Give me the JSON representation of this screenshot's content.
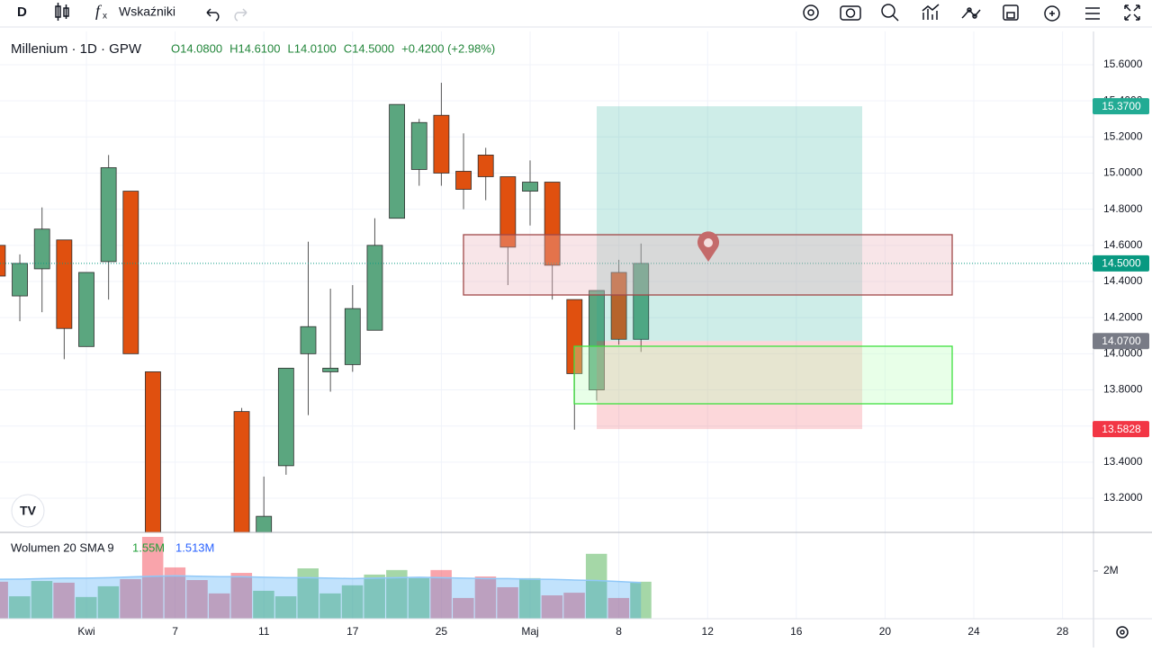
{
  "toolbar": {
    "interval": "D",
    "indicators": "Wskaźniki"
  },
  "chart_data": {
    "type": "candlestick",
    "title": "Millenium · 1D · GPW",
    "legend_items": [
      "O14.0800",
      "H14.6100",
      "L14.0100",
      "C14.5000",
      "+0.4200 (+2.98%)"
    ],
    "categories": [
      null,
      null,
      null,
      null,
      "Kwi",
      null,
      null,
      null,
      "7",
      null,
      null,
      null,
      "11",
      null,
      null,
      null,
      "17",
      null,
      null,
      null,
      "25",
      null,
      null,
      null,
      "Maj",
      null,
      null,
      null,
      "8",
      null,
      null,
      null,
      "12",
      null,
      null,
      null,
      "16",
      null,
      null,
      null,
      "20",
      null,
      null,
      null,
      "24",
      null,
      null,
      null,
      "28",
      null
    ],
    "open": [
      14.6,
      14.32,
      14.47,
      14.63,
      14.04,
      14.51,
      14.9,
      13.9,
      null,
      null,
      null,
      13.68,
      12.9,
      13.38,
      14.0,
      13.9,
      13.94,
      14.13,
      14.75,
      15.02,
      15.32,
      15.01,
      15.1,
      14.98,
      14.9,
      14.95,
      14.3,
      13.8,
      14.45,
      14.08,
      null,
      null,
      null,
      null,
      null,
      null,
      null,
      null,
      null,
      null,
      null,
      null,
      null,
      null,
      null,
      null,
      null,
      null,
      null,
      null
    ],
    "high": [
      14.6,
      14.55,
      14.81,
      14.63,
      14.45,
      15.1,
      14.9,
      13.9,
      null,
      null,
      null,
      13.7,
      13.32,
      13.92,
      14.62,
      14.36,
      14.38,
      14.75,
      15.38,
      15.3,
      15.5,
      15.22,
      15.14,
      14.98,
      15.07,
      14.95,
      14.3,
      14.35,
      14.52,
      14.61,
      null,
      null,
      null,
      null,
      null,
      null,
      null,
      null,
      null,
      null,
      null,
      null,
      null,
      null,
      null,
      null,
      null,
      null,
      null,
      null
    ],
    "low": [
      14.4,
      14.18,
      14.23,
      13.97,
      14.04,
      14.3,
      14.0,
      12.8,
      null,
      null,
      null,
      12.8,
      12.85,
      13.33,
      13.66,
      13.79,
      13.9,
      14.13,
      14.75,
      14.93,
      14.93,
      14.8,
      14.85,
      14.38,
      14.71,
      14.3,
      13.58,
      13.74,
      14.05,
      14.01,
      null,
      null,
      null,
      null,
      null,
      null,
      null,
      null,
      null,
      null,
      null,
      null,
      null,
      null,
      null,
      null,
      null,
      null,
      null,
      null
    ],
    "close": [
      14.43,
      14.5,
      14.69,
      14.14,
      14.45,
      15.03,
      14.0,
      12.85,
      null,
      null,
      null,
      12.85,
      13.1,
      13.92,
      14.15,
      13.92,
      14.25,
      14.6,
      15.38,
      15.28,
      15.0,
      14.91,
      14.98,
      14.59,
      14.95,
      14.49,
      13.89,
      14.35,
      14.08,
      14.5,
      null,
      null,
      null,
      null,
      null,
      null,
      null,
      null,
      null,
      null,
      null,
      null,
      null,
      null,
      null,
      null,
      null,
      null,
      null,
      null
    ],
    "up_color": "#5ba67f",
    "down_color": "#e0500f",
    "ylim": [
      13.011,
      15.784
    ],
    "yticks": [
      {
        "value": 13.2,
        "label": "13.2000"
      },
      {
        "value": 13.4,
        "label": "13.4000"
      },
      {
        "value": 13.6,
        "label": "13.6000"
      },
      {
        "value": 13.8,
        "label": "13.8000"
      },
      {
        "value": 14.0,
        "label": "14.0000"
      },
      {
        "value": 14.2,
        "label": "14.2000"
      },
      {
        "value": 14.4,
        "label": "14.4000"
      },
      {
        "value": 14.6,
        "label": "14.6000"
      },
      {
        "value": 14.8,
        "label": "14.8000"
      },
      {
        "value": 15.0,
        "label": "15.0000"
      },
      {
        "value": 15.2,
        "label": "15.2000"
      },
      {
        "value": 15.4,
        "label": "15.4000"
      },
      {
        "value": 15.6,
        "label": "15.6000"
      }
    ],
    "grid": true,
    "last_price": {
      "value": 14.5,
      "label": "14.5000",
      "color": "#089981"
    },
    "position": {
      "target": {
        "value": 15.37,
        "label": "15.3700",
        "color": "#22ab94"
      },
      "entry": {
        "value": 14.07,
        "label": "14.0700",
        "color": "#787b86"
      },
      "stop": {
        "value": 13.5828,
        "label": "13.5828",
        "color": "#f23645"
      }
    },
    "volume": {
      "title": "Wolumen 20 SMA 9",
      "last": {
        "value": 1.55,
        "label": "1.55M"
      },
      "sma_last": {
        "value": 1.513,
        "label": "1.513M"
      },
      "values": [
        1.55,
        0.94,
        1.58,
        1.51,
        0.91,
        1.36,
        1.66,
        3.43,
        2.15,
        1.62,
        1.06,
        1.92,
        1.17,
        0.94,
        2.11,
        1.06,
        1.4,
        1.85,
        2.04,
        1.7,
        2.04,
        0.87,
        1.77,
        1.32,
        1.7,
        0.98,
        1.09,
        2.72,
        0.87,
        1.55,
        null,
        null,
        null,
        null,
        null,
        null,
        null,
        null,
        null,
        null,
        null,
        null,
        null,
        null,
        null,
        null,
        null,
        null,
        null,
        null
      ],
      "sma": [
        1.65,
        1.66,
        1.68,
        1.7,
        1.7,
        1.72,
        1.75,
        1.78,
        1.8,
        1.78,
        1.76,
        1.76,
        1.74,
        1.72,
        1.72,
        1.7,
        1.68,
        1.7,
        1.72,
        1.74,
        1.72,
        1.7,
        1.68,
        1.68,
        1.66,
        1.65,
        1.62,
        1.6,
        1.56,
        1.513,
        null,
        null,
        null,
        null,
        null,
        null,
        null,
        null,
        null,
        null,
        null,
        null,
        null,
        null,
        null,
        null,
        null,
        null,
        null,
        null
      ],
      "ylim": [
        0,
        3.58
      ],
      "yticks": [
        {
          "value": 2,
          "label": "2M"
        }
      ]
    }
  }
}
